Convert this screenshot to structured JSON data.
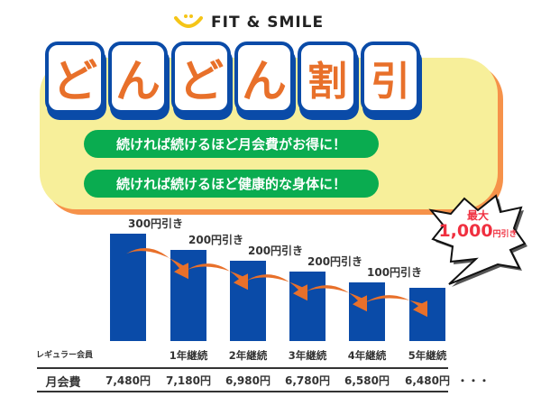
{
  "brand": {
    "name": "FIT & SMILE",
    "icon": "smile-icon",
    "color": "#f5c518"
  },
  "title": {
    "chars": [
      "ど",
      "ん",
      "ど",
      "ん",
      "割",
      "引"
    ]
  },
  "taglines": [
    "続ければ続けるほど月会費がお得に！",
    "続ければ続けるほど健康的な身体に！"
  ],
  "badge": {
    "top": "最大",
    "amount": "1,000",
    "suffix": "円引き"
  },
  "colors": {
    "bar": "#0a4ba8",
    "arrow": "#e8702a",
    "pill": "#0aac50",
    "panel": "#f7ef9a"
  },
  "chart_data": {
    "type": "bar",
    "categories": [
      "レギュラー会員",
      "1年継続",
      "2年継続",
      "3年継続",
      "4年継続",
      "5年継続"
    ],
    "values": [
      7480,
      7180,
      6980,
      6780,
      6580,
      6480
    ],
    "discount_labels": [
      "300円引き",
      "200円引き",
      "200円引き",
      "200円引き",
      "100円引き"
    ],
    "ylim": [
      5500,
      7500
    ],
    "row_label": "月会費",
    "fee_labels": [
      "7,480円",
      "7,180円",
      "6,980円",
      "6,780円",
      "6,580円",
      "6,480円"
    ],
    "continuation": "・・・"
  }
}
